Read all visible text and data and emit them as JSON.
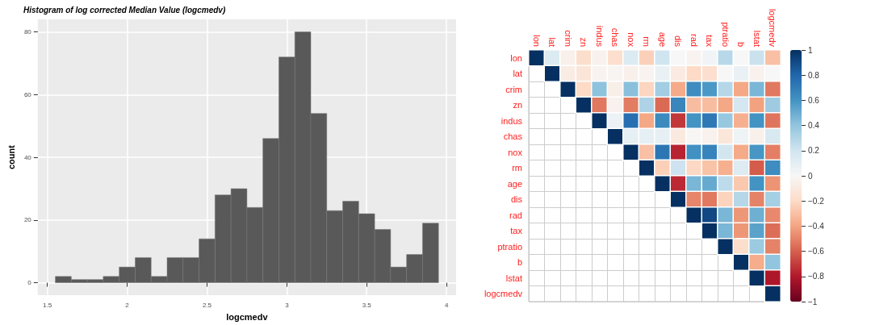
{
  "chart_data": [
    {
      "type": "histogram",
      "title": "Histogram of log corrected Median Value (logcmedv)",
      "xlabel": "logcmedv",
      "ylabel": "count",
      "bins": [
        1.55,
        1.65,
        1.75,
        1.85,
        1.95,
        2.05,
        2.15,
        2.25,
        2.35,
        2.45,
        2.55,
        2.65,
        2.75,
        2.85,
        2.95,
        3.05,
        3.15,
        3.25,
        3.35,
        3.45,
        3.55,
        3.65,
        3.75,
        3.85,
        3.95
      ],
      "values": [
        2,
        1,
        1,
        2,
        5,
        8,
        2,
        8,
        8,
        14,
        28,
        30,
        24,
        46,
        72,
        80,
        54,
        23,
        26,
        22,
        17,
        5,
        9,
        19
      ],
      "color": "#595959",
      "xlim": [
        1.44,
        4.06
      ],
      "ylim": [
        -4,
        84
      ],
      "xticks": [
        1.5,
        2.0,
        2.5,
        3.0,
        3.5,
        4.0
      ],
      "yticks": [
        0,
        20,
        40,
        60,
        80
      ],
      "grid": true
    },
    {
      "type": "heatmap",
      "categories": [
        "lon",
        "lat",
        "crim",
        "zn",
        "indus",
        "chas",
        "nox",
        "rm",
        "age",
        "dis",
        "rad",
        "tax",
        "ptratio",
        "b",
        "lstat",
        "logcmedv"
      ],
      "y_categories": [
        "lon",
        "lat",
        "crim",
        "zn",
        "indus",
        "chas",
        "nox",
        "rm",
        "age",
        "dis",
        "rad",
        "tax",
        "ptratio",
        "b",
        "lstat",
        "logcmedv"
      ],
      "cells": [
        [
          1,
          0.14,
          -0.05,
          -0.18,
          -0.04,
          -0.17,
          0.14,
          -0.24,
          0.2,
          0,
          -0.03,
          0.03,
          0.28,
          0,
          0.22,
          -0.3
        ],
        [
          null,
          1,
          -0.08,
          -0.13,
          -0.03,
          -0.02,
          -0.05,
          -0.03,
          0.07,
          -0.09,
          -0.2,
          -0.17,
          0,
          0.07,
          -0.04,
          0
        ],
        [
          null,
          null,
          1,
          -0.2,
          0.41,
          -0.06,
          0.42,
          -0.22,
          0.35,
          -0.38,
          0.63,
          0.58,
          0.29,
          -0.39,
          0.46,
          -0.53
        ],
        [
          null,
          null,
          null,
          1,
          -0.53,
          -0.04,
          -0.52,
          0.31,
          -0.57,
          0.66,
          -0.31,
          -0.31,
          -0.39,
          0.18,
          -0.41,
          0.36
        ],
        [
          null,
          null,
          null,
          null,
          1,
          0.06,
          0.76,
          -0.39,
          0.64,
          -0.71,
          0.6,
          0.72,
          0.38,
          -0.36,
          0.6,
          -0.54
        ],
        [
          null,
          null,
          null,
          null,
          null,
          1,
          0.09,
          0.09,
          0.09,
          -0.1,
          -0.01,
          -0.04,
          -0.12,
          0.05,
          -0.05,
          0.16
        ],
        [
          null,
          null,
          null,
          null,
          null,
          null,
          1,
          -0.3,
          0.73,
          -0.77,
          0.61,
          0.67,
          0.19,
          -0.38,
          0.59,
          -0.51
        ],
        [
          null,
          null,
          null,
          null,
          null,
          null,
          null,
          1,
          -0.24,
          0.21,
          -0.21,
          -0.29,
          -0.36,
          0.13,
          -0.61,
          0.63
        ],
        [
          null,
          null,
          null,
          null,
          null,
          null,
          null,
          null,
          1,
          -0.75,
          0.46,
          0.51,
          0.26,
          -0.27,
          0.6,
          -0.45
        ],
        [
          null,
          null,
          null,
          null,
          null,
          null,
          null,
          null,
          null,
          1,
          -0.49,
          -0.53,
          -0.23,
          0.29,
          -0.5,
          0.34
        ],
        [
          null,
          null,
          null,
          null,
          null,
          null,
          null,
          null,
          null,
          null,
          1,
          0.91,
          0.46,
          -0.44,
          0.49,
          -0.48
        ],
        [
          null,
          null,
          null,
          null,
          null,
          null,
          null,
          null,
          null,
          null,
          null,
          1,
          0.46,
          -0.44,
          0.54,
          -0.56
        ],
        [
          null,
          null,
          null,
          null,
          null,
          null,
          null,
          null,
          null,
          null,
          null,
          null,
          1,
          -0.18,
          0.37,
          -0.5
        ],
        [
          null,
          null,
          null,
          null,
          null,
          null,
          null,
          null,
          null,
          null,
          null,
          null,
          null,
          1,
          -0.37,
          0.4
        ],
        [
          null,
          null,
          null,
          null,
          null,
          null,
          null,
          null,
          null,
          null,
          null,
          null,
          null,
          null,
          1,
          -0.81
        ],
        [
          null,
          null,
          null,
          null,
          null,
          null,
          null,
          null,
          null,
          null,
          null,
          null,
          null,
          null,
          null,
          1
        ]
      ],
      "clim": [
        -1,
        1
      ],
      "cticks": [
        -1,
        -0.8,
        -0.6,
        -0.4,
        -0.2,
        0,
        0.2,
        0.4,
        0.6,
        0.8,
        1
      ]
    }
  ]
}
